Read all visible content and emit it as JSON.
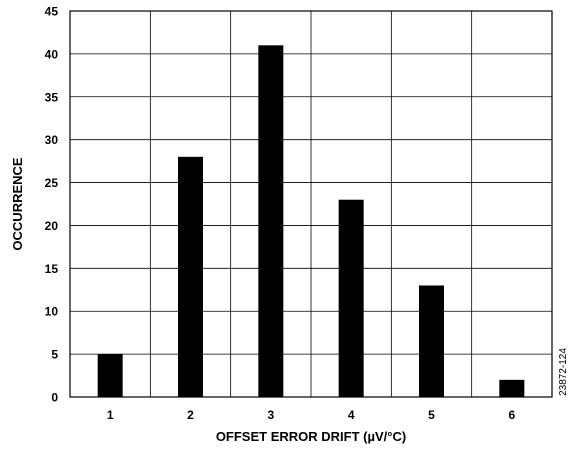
{
  "chart_data": {
    "type": "bar",
    "xlabel": "OFFSET ERROR DRIFT (µV/°C)",
    "ylabel": "OCCURRENCE",
    "categories": [
      "1",
      "2",
      "3",
      "4",
      "5",
      "6"
    ],
    "values": [
      5,
      28,
      41,
      23,
      13,
      2
    ],
    "ylim": [
      0,
      45
    ],
    "yticks": [
      0,
      5,
      10,
      15,
      20,
      25,
      30,
      35,
      40,
      45
    ],
    "grid": true,
    "bar_color": "#000000",
    "side_note": "23872-124"
  }
}
